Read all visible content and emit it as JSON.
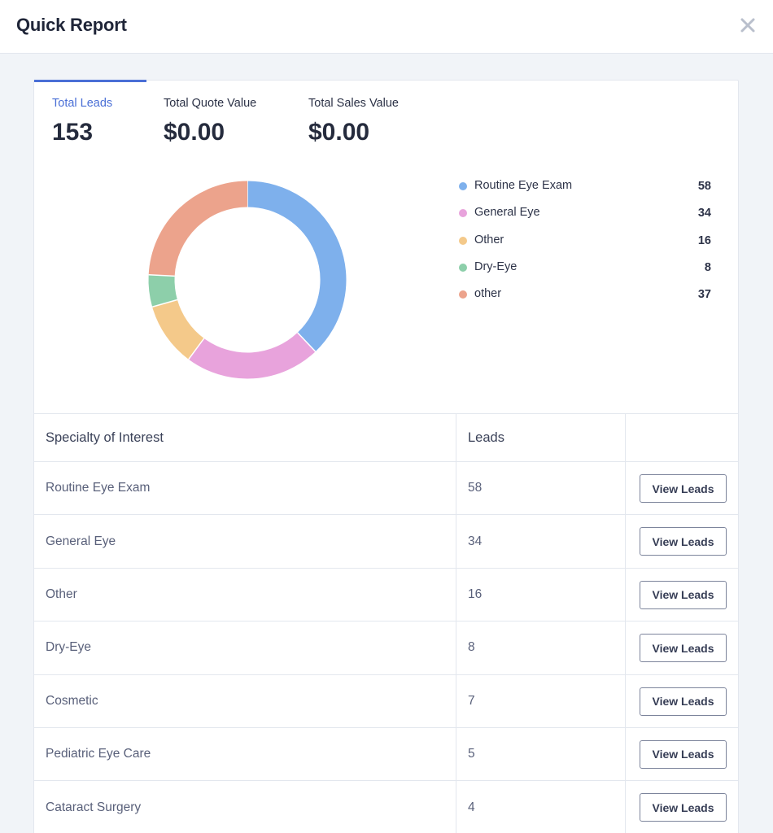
{
  "header": {
    "title": "Quick Report"
  },
  "stats": [
    {
      "label": "Total Leads",
      "value": "153"
    },
    {
      "label": "Total Quote Value",
      "value": "$0.00"
    },
    {
      "label": "Total Sales Value",
      "value": "$0.00"
    }
  ],
  "chart_data": {
    "type": "pie",
    "categories": [
      "Routine Eye Exam",
      "General Eye",
      "Other",
      "Dry-Eye",
      "other"
    ],
    "values": [
      58,
      34,
      16,
      8,
      37
    ],
    "colors": [
      "#7eb0ec",
      "#e8a3dc",
      "#f4c98a",
      "#8dcfaa",
      "#eca38c"
    ],
    "donut": true
  },
  "legend": [
    {
      "label": "Routine Eye Exam",
      "value": "58",
      "color": "#7eb0ec"
    },
    {
      "label": "General Eye",
      "value": "34",
      "color": "#e8a3dc"
    },
    {
      "label": "Other",
      "value": "16",
      "color": "#f4c98a"
    },
    {
      "label": "Dry-Eye",
      "value": "8",
      "color": "#8dcfaa"
    },
    {
      "label": "other",
      "value": "37",
      "color": "#eca38c"
    }
  ],
  "table": {
    "headers": [
      "Specialty of Interest",
      "Leads"
    ],
    "button_label": "View Leads",
    "rows": [
      {
        "specialty": "Routine Eye Exam",
        "leads": "58"
      },
      {
        "specialty": "General Eye",
        "leads": "34"
      },
      {
        "specialty": "Other",
        "leads": "16"
      },
      {
        "specialty": "Dry-Eye",
        "leads": "8"
      },
      {
        "specialty": "Cosmetic",
        "leads": "7"
      },
      {
        "specialty": "Pediatric Eye Care",
        "leads": "5"
      },
      {
        "specialty": "Cataract Surgery",
        "leads": "4"
      }
    ]
  }
}
